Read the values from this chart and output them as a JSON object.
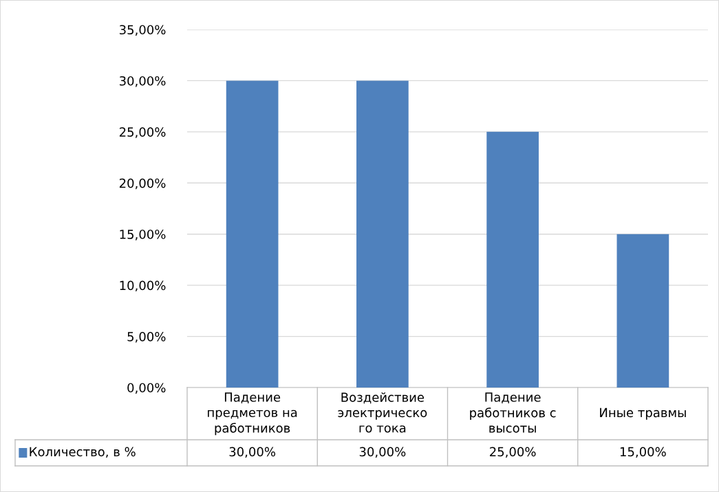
{
  "chart_data": {
    "type": "bar",
    "categories": [
      "Падение предметов на работников",
      "Воздействие электрического тока",
      "Падение работников с высоты",
      "Иные травмы"
    ],
    "series": [
      {
        "name": "Количество, в %",
        "color": "#4f81bd",
        "values": [
          30,
          30,
          25,
          15
        ],
        "value_labels": [
          "30,00%",
          "30,00%",
          "25,00%",
          "15,00%"
        ]
      }
    ],
    "ylim": [
      0,
      35
    ],
    "yticks": [
      {
        "value": 0,
        "label": "0,00%"
      },
      {
        "value": 5,
        "label": "5,00%"
      },
      {
        "value": 10,
        "label": "10,00%"
      },
      {
        "value": 15,
        "label": "15,00%"
      },
      {
        "value": 20,
        "label": "20,00%"
      },
      {
        "value": 25,
        "label": "25,00%"
      },
      {
        "value": 30,
        "label": "30,00%"
      },
      {
        "value": 35,
        "label": "35,00%"
      }
    ],
    "grid": "y",
    "legend": "bottom"
  }
}
